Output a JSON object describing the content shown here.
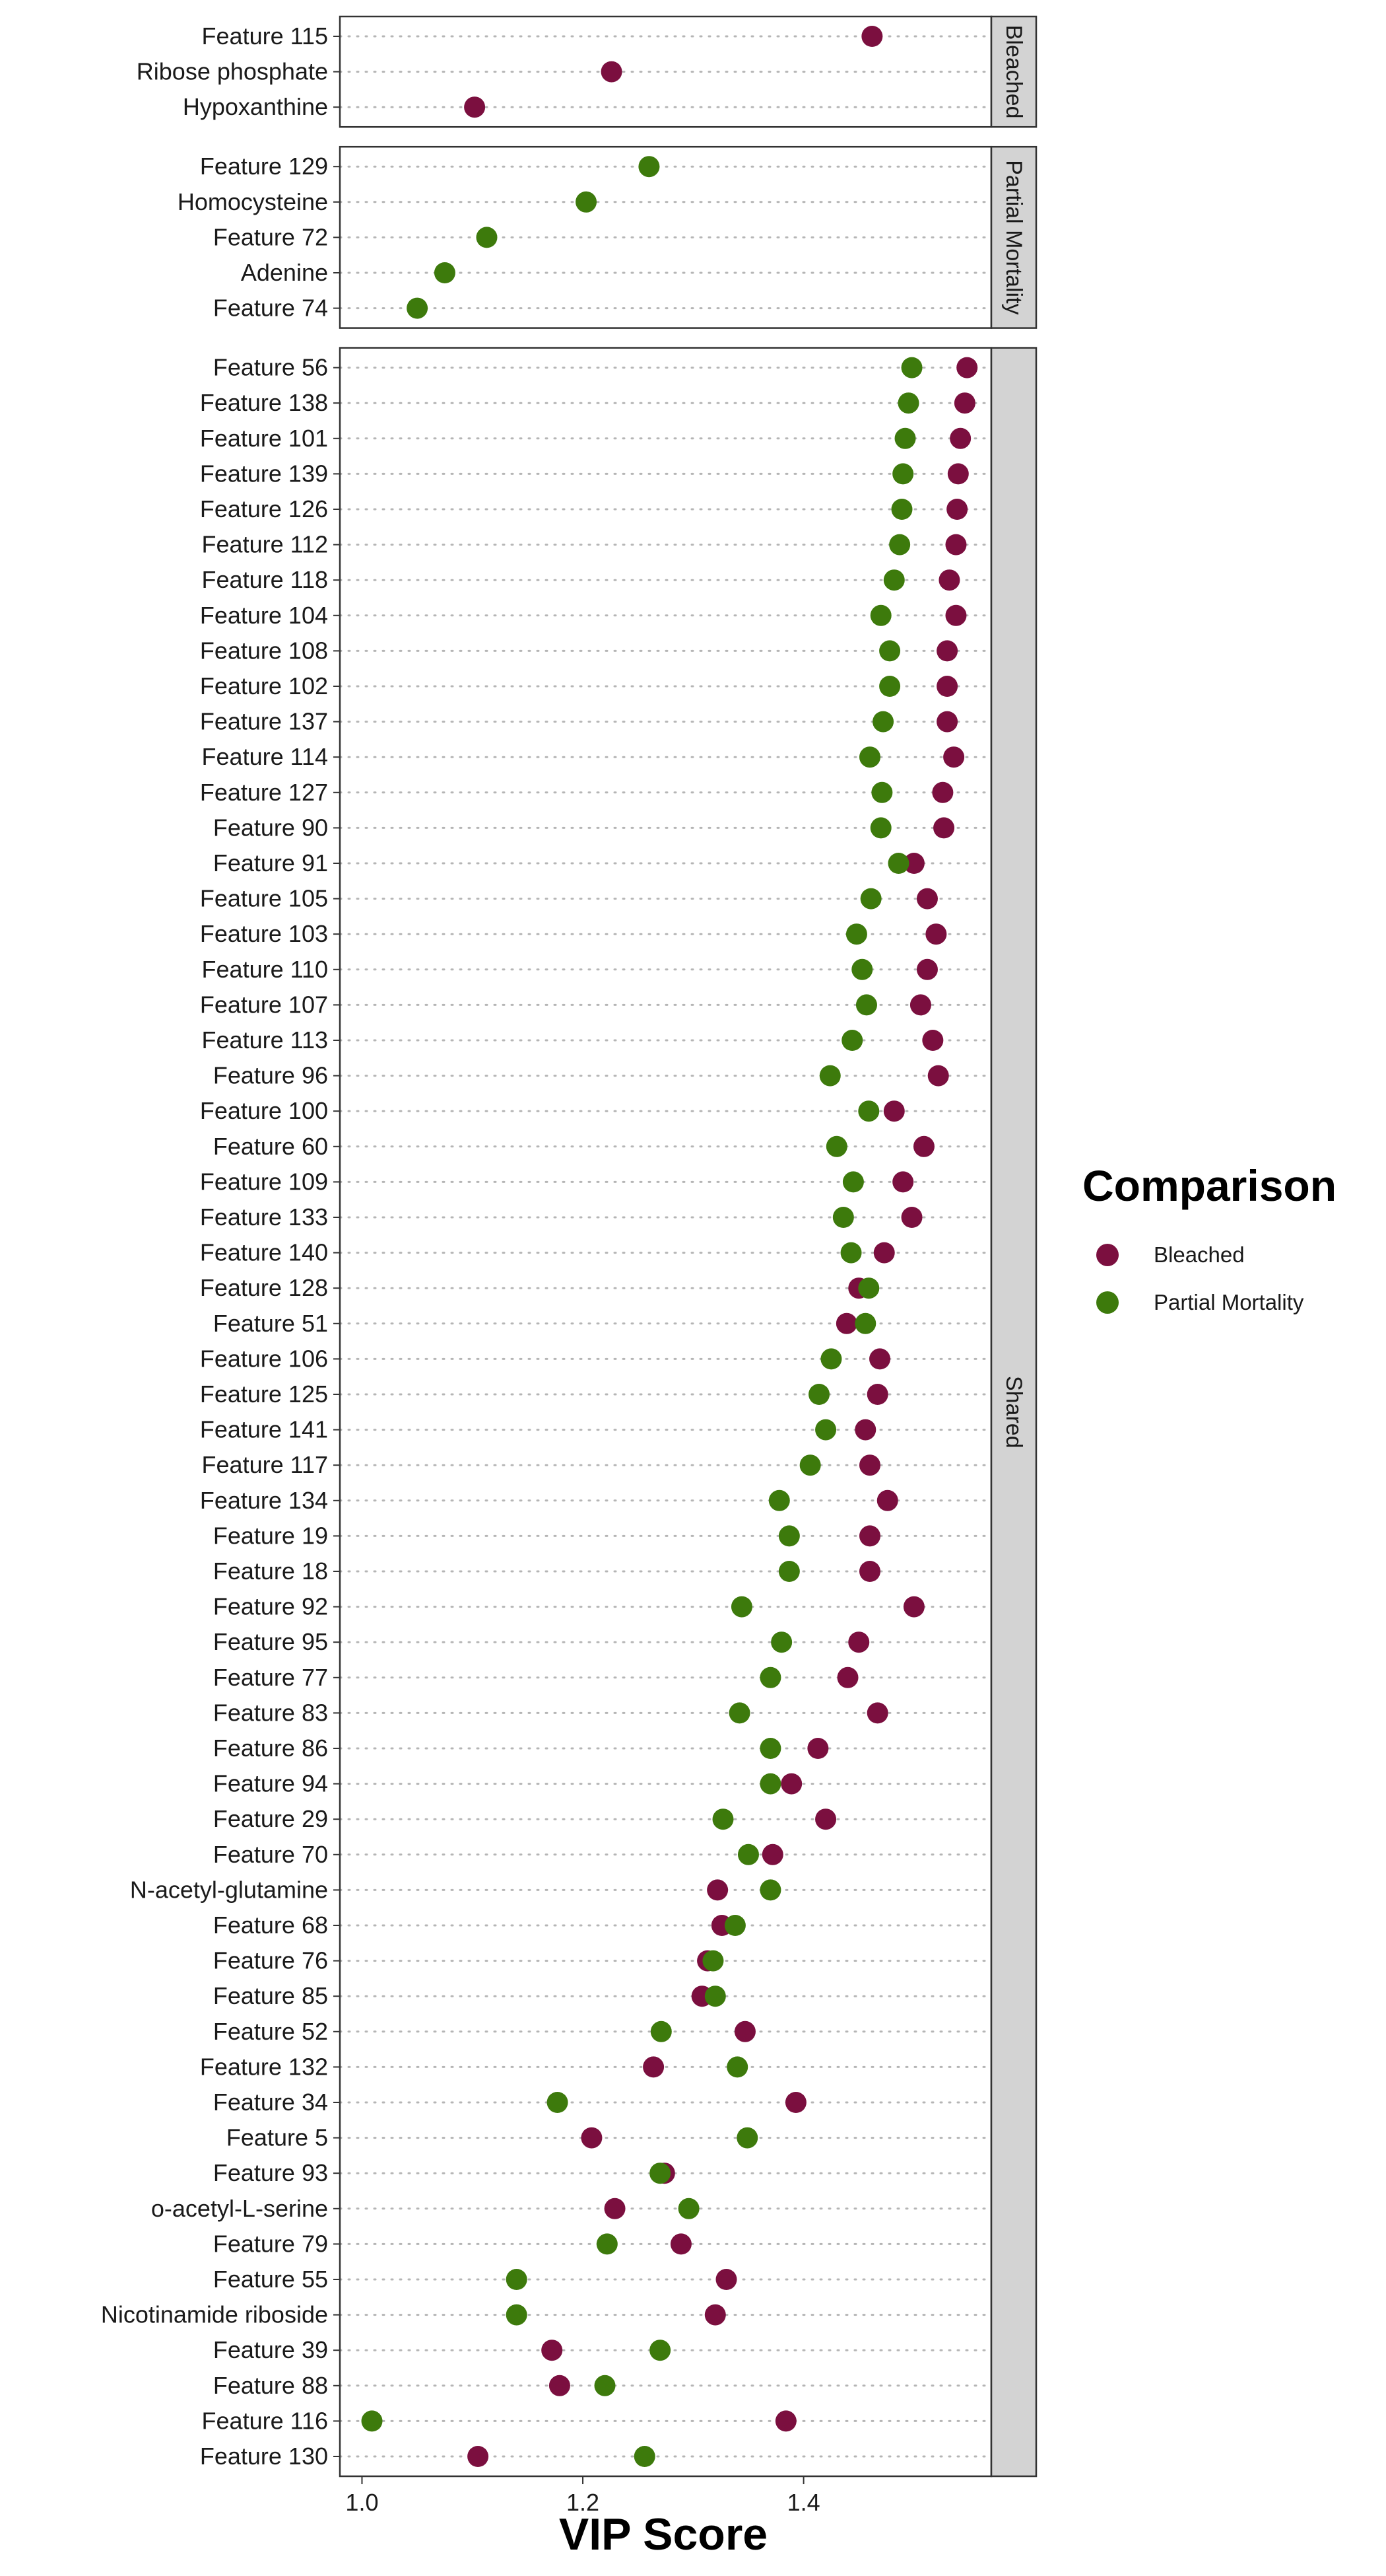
{
  "chart_data": {
    "type": "scatter",
    "xlabel": "VIP Score",
    "xlim": [
      0.98,
      1.57
    ],
    "x_ticks": [
      1.0,
      1.2,
      1.4
    ],
    "x_tick_labels": [
      "1.0",
      "1.2",
      "1.4"
    ],
    "grid": "dotted horizontal guides per feature",
    "legend": {
      "title": "Comparison",
      "placement": "right",
      "entries": [
        {
          "name": "Bleached",
          "color": "#7b0f3f"
        },
        {
          "name": "Partial Mortality",
          "color": "#3d7a0c"
        }
      ]
    },
    "panels": [
      {
        "strip": "Bleached",
        "rows": [
          {
            "label": "Feature 115",
            "bleached": 1.462,
            "partial": null
          },
          {
            "label": "Ribose phosphate",
            "bleached": 1.226,
            "partial": null
          },
          {
            "label": "Hypoxanthine",
            "bleached": 1.102,
            "partial": null
          }
        ]
      },
      {
        "strip": "Partial Mortality",
        "rows": [
          {
            "label": "Feature 129",
            "bleached": null,
            "partial": 1.26
          },
          {
            "label": "Homocysteine",
            "bleached": null,
            "partial": 1.203
          },
          {
            "label": "Feature 72",
            "bleached": null,
            "partial": 1.113
          },
          {
            "label": "Adenine",
            "bleached": null,
            "partial": 1.075
          },
          {
            "label": "Feature 74",
            "bleached": null,
            "partial": 1.05
          }
        ]
      },
      {
        "strip": "Shared",
        "rows": [
          {
            "label": "Feature 56",
            "bleached": 1.548,
            "partial": 1.498
          },
          {
            "label": "Feature 138",
            "bleached": 1.546,
            "partial": 1.495
          },
          {
            "label": "Feature 101",
            "bleached": 1.542,
            "partial": 1.492
          },
          {
            "label": "Feature 139",
            "bleached": 1.54,
            "partial": 1.49
          },
          {
            "label": "Feature 126",
            "bleached": 1.539,
            "partial": 1.489
          },
          {
            "label": "Feature 112",
            "bleached": 1.538,
            "partial": 1.487
          },
          {
            "label": "Feature 118",
            "bleached": 1.532,
            "partial": 1.482
          },
          {
            "label": "Feature 104",
            "bleached": 1.538,
            "partial": 1.47
          },
          {
            "label": "Feature 108",
            "bleached": 1.53,
            "partial": 1.478
          },
          {
            "label": "Feature 102",
            "bleached": 1.53,
            "partial": 1.478
          },
          {
            "label": "Feature 137",
            "bleached": 1.53,
            "partial": 1.472
          },
          {
            "label": "Feature 114",
            "bleached": 1.536,
            "partial": 1.46
          },
          {
            "label": "Feature 127",
            "bleached": 1.526,
            "partial": 1.471
          },
          {
            "label": "Feature 90",
            "bleached": 1.527,
            "partial": 1.47
          },
          {
            "label": "Feature 91",
            "bleached": 1.5,
            "partial": 1.486
          },
          {
            "label": "Feature 105",
            "bleached": 1.512,
            "partial": 1.461
          },
          {
            "label": "Feature 103",
            "bleached": 1.52,
            "partial": 1.448
          },
          {
            "label": "Feature 110",
            "bleached": 1.512,
            "partial": 1.453
          },
          {
            "label": "Feature 107",
            "bleached": 1.506,
            "partial": 1.457
          },
          {
            "label": "Feature 113",
            "bleached": 1.517,
            "partial": 1.444
          },
          {
            "label": "Feature 96",
            "bleached": 1.522,
            "partial": 1.424
          },
          {
            "label": "Feature 100",
            "bleached": 1.482,
            "partial": 1.459
          },
          {
            "label": "Feature 60",
            "bleached": 1.509,
            "partial": 1.43
          },
          {
            "label": "Feature 109",
            "bleached": 1.49,
            "partial": 1.445
          },
          {
            "label": "Feature 133",
            "bleached": 1.498,
            "partial": 1.436
          },
          {
            "label": "Feature 140",
            "bleached": 1.473,
            "partial": 1.443
          },
          {
            "label": "Feature 128",
            "bleached": 1.45,
            "partial": 1.459
          },
          {
            "label": "Feature 51",
            "bleached": 1.439,
            "partial": 1.456
          },
          {
            "label": "Feature 106",
            "bleached": 1.469,
            "partial": 1.425
          },
          {
            "label": "Feature 125",
            "bleached": 1.467,
            "partial": 1.414
          },
          {
            "label": "Feature 141",
            "bleached": 1.456,
            "partial": 1.42
          },
          {
            "label": "Feature 117",
            "bleached": 1.46,
            "partial": 1.406
          },
          {
            "label": "Feature 134",
            "bleached": 1.476,
            "partial": 1.378
          },
          {
            "label": "Feature 19",
            "bleached": 1.46,
            "partial": 1.387
          },
          {
            "label": "Feature 18",
            "bleached": 1.46,
            "partial": 1.387
          },
          {
            "label": "Feature 92",
            "bleached": 1.5,
            "partial": 1.344
          },
          {
            "label": "Feature 95",
            "bleached": 1.45,
            "partial": 1.38
          },
          {
            "label": "Feature 77",
            "bleached": 1.44,
            "partial": 1.37
          },
          {
            "label": "Feature 83",
            "bleached": 1.467,
            "partial": 1.342
          },
          {
            "label": "Feature 86",
            "bleached": 1.413,
            "partial": 1.37
          },
          {
            "label": "Feature 94",
            "bleached": 1.389,
            "partial": 1.37
          },
          {
            "label": "Feature 29",
            "bleached": 1.42,
            "partial": 1.327
          },
          {
            "label": "Feature 70",
            "bleached": 1.372,
            "partial": 1.35
          },
          {
            "label": "N-acetyl-glutamine",
            "bleached": 1.322,
            "partial": 1.37
          },
          {
            "label": "Feature 68",
            "bleached": 1.326,
            "partial": 1.338
          },
          {
            "label": "Feature 76",
            "bleached": 1.313,
            "partial": 1.318
          },
          {
            "label": "Feature 85",
            "bleached": 1.308,
            "partial": 1.32
          },
          {
            "label": "Feature 52",
            "bleached": 1.347,
            "partial": 1.271
          },
          {
            "label": "Feature 132",
            "bleached": 1.264,
            "partial": 1.34
          },
          {
            "label": "Feature 34",
            "bleached": 1.393,
            "partial": 1.177
          },
          {
            "label": "Feature 5",
            "bleached": 1.208,
            "partial": 1.349
          },
          {
            "label": "Feature 93",
            "bleached": 1.274,
            "partial": 1.27
          },
          {
            "label": "o-acetyl-L-serine",
            "bleached": 1.229,
            "partial": 1.296
          },
          {
            "label": "Feature 79",
            "bleached": 1.289,
            "partial": 1.222
          },
          {
            "label": "Feature 55",
            "bleached": 1.33,
            "partial": 1.14
          },
          {
            "label": "Nicotinamide riboside",
            "bleached": 1.32,
            "partial": 1.14
          },
          {
            "label": "Feature 39",
            "bleached": 1.172,
            "partial": 1.27
          },
          {
            "label": "Feature 88",
            "bleached": 1.179,
            "partial": 1.22
          },
          {
            "label": "Feature 116",
            "bleached": 1.384,
            "partial": 1.009
          },
          {
            "label": "Feature 130",
            "bleached": 1.105,
            "partial": 1.256
          }
        ]
      }
    ]
  }
}
